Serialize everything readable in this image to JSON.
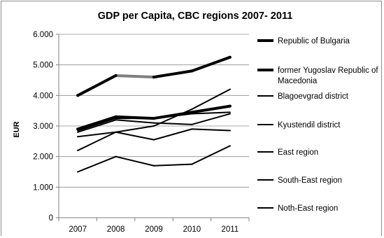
{
  "chart_data": {
    "type": "line",
    "title": "GDP per Capita, CBC regions 2007- 2011",
    "xlabel": "",
    "ylabel": "EUR",
    "categories": [
      "2007",
      "2008",
      "2009",
      "2010",
      "2011"
    ],
    "ylim": [
      0,
      6000
    ],
    "ytick_labels": [
      "0",
      "1.000",
      "2.000",
      "3.000",
      "4.000",
      "5.000",
      "6.000"
    ],
    "grid": true,
    "legend_position": "right",
    "series": [
      {
        "name": "Republic of Bulgaria",
        "values": [
          4000,
          4650,
          4600,
          4800,
          5250
        ],
        "color": "#000000",
        "highlight_color": "#7f7f7f"
      },
      {
        "name": "former Yugoslav Republic of Macedonia",
        "values": [
          2900,
          3300,
          3250,
          3450,
          3650
        ],
        "color": "#000000"
      },
      {
        "name": "Blagoevgrad district",
        "values": [
          2800,
          3200,
          3100,
          3050,
          3400
        ],
        "color": "#000000"
      },
      {
        "name": "Kyustendil district",
        "values": [
          2200,
          2800,
          3000,
          3550,
          4200
        ],
        "color": "#000000"
      },
      {
        "name": "East region",
        "values": [
          2850,
          3250,
          3250,
          3400,
          3450
        ],
        "color": "#000000"
      },
      {
        "name": "South-East region",
        "values": [
          2650,
          2800,
          2550,
          2900,
          2850
        ],
        "color": "#000000"
      },
      {
        "name": "Noth-East region",
        "values": [
          1500,
          2000,
          1700,
          1750,
          2350
        ],
        "color": "#000000"
      }
    ]
  }
}
